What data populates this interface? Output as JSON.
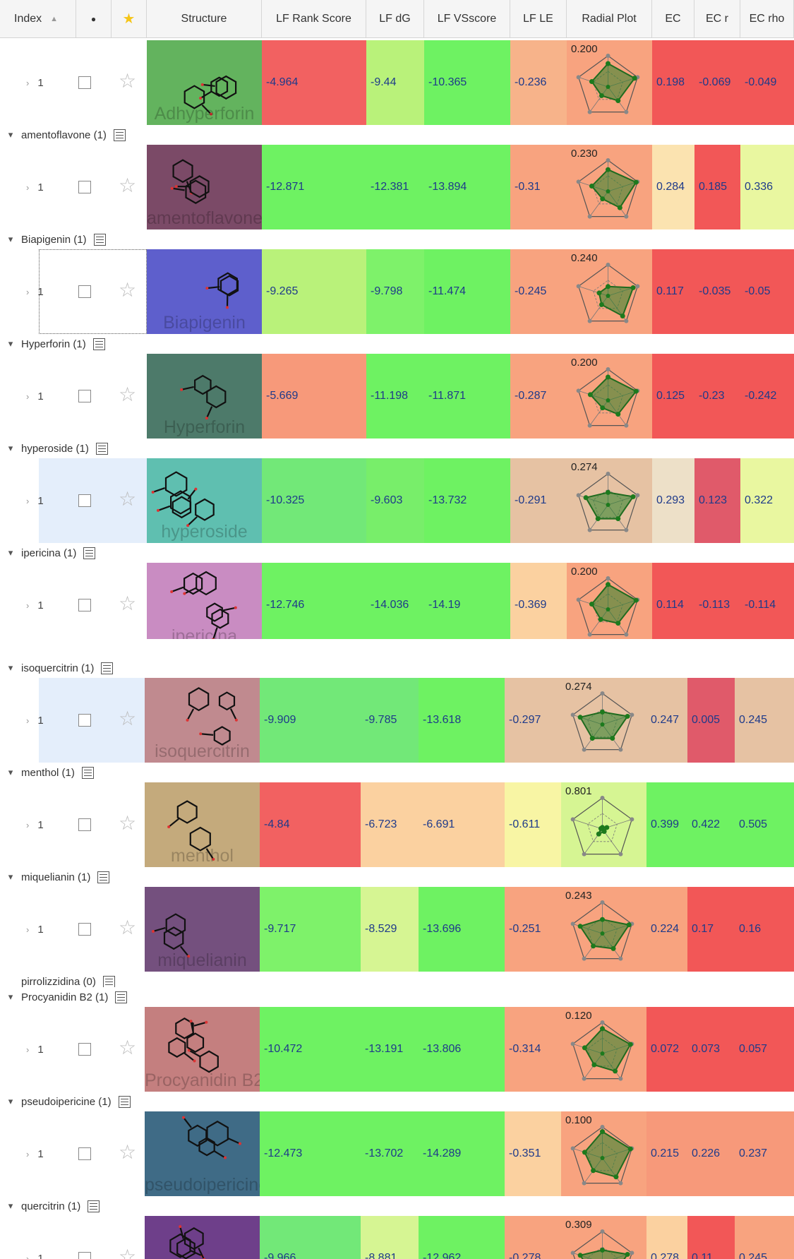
{
  "columns": {
    "index": "Index",
    "structure": "Structure",
    "rank": "LF Rank Score",
    "dg": "LF dG",
    "vs": "LF VSscore",
    "le": "LF LE",
    "radial": "Radial Plot",
    "ec": "EC",
    "ecr": "EC r",
    "ecrho": "EC rho"
  },
  "header_icons": [
    "sort-ascending-icon",
    "dot-icon",
    "star-icon"
  ],
  "panel_a": {
    "groups": [
      {
        "name": "",
        "row": {
          "index": "1",
          "structure_name": "Adhyperforin",
          "struct_color": "#63b35e",
          "rank": "-4.964",
          "rank_color": "#f26161",
          "dg": "-9.44",
          "dg_color": "#b9f27a",
          "vs": "-10.365",
          "vs_color": "#6ef262",
          "le": "-0.236",
          "le_color": "#f7b38a",
          "radial_value": "0.200",
          "radial_color": "#f8a37f",
          "radial_levels": [
            0.75,
            0.9,
            0.55,
            0.35,
            0.55
          ],
          "ec": "0.198",
          "ec_color": "#f25757",
          "ecr": "-0.069",
          "ecr_color": "#f25757",
          "ecrho": "-0.049",
          "ecrho_color": "#f25757"
        }
      },
      {
        "name": "amentoflavone (1)",
        "row": {
          "index": "1",
          "structure_name": "amentoflavone",
          "struct_color": "#7b4a67",
          "rank": "-12.871",
          "rank_color": "#6ef262",
          "dg": "-12.381",
          "dg_color": "#6ef262",
          "vs": "-13.894",
          "vs_color": "#6ef262",
          "le": "-0.31",
          "le_color": "#f8a37f",
          "radial_value": "0.230",
          "radial_color": "#f8a37f",
          "radial_levels": [
            0.7,
            0.95,
            0.65,
            0.3,
            0.55
          ],
          "ec": "0.284",
          "ec_color": "#fbe3b0",
          "ecr": "0.185",
          "ecr_color": "#f25757",
          "ecrho": "0.336",
          "ecrho_color": "#e9f7a0"
        }
      },
      {
        "name": "Biapigenin (1)",
        "row": {
          "index": "1",
          "structure_name": "Biapigenin",
          "struct_color": "#5e5fcc",
          "rank": "-9.265",
          "rank_color": "#b9f27a",
          "dg": "-9.798",
          "dg_color": "#7ef26a",
          "vs": "-11.474",
          "vs_color": "#6ef262",
          "le": "-0.245",
          "le_color": "#f8a37f",
          "radial_value": "0.240",
          "radial_color": "#f8a37f",
          "radial_levels": [
            0.3,
            0.85,
            0.8,
            0.35,
            0.3
          ],
          "ec": "0.117",
          "ec_color": "#f25757",
          "ecr": "-0.035",
          "ecr_color": "#f25757",
          "ecrho": "-0.05",
          "ecrho_color": "#f25757"
        }
      },
      {
        "name": "Hyperforin (1)",
        "row": {
          "index": "1",
          "structure_name": "Hyperforin",
          "struct_color": "#4d7a6a",
          "rank": "-5.669",
          "rank_color": "#f7997a",
          "dg": "-11.198",
          "dg_color": "#6ef262",
          "vs": "-11.871",
          "vs_color": "#6ef262",
          "le": "-0.287",
          "le_color": "#f8a37f",
          "radial_value": "0.200",
          "radial_color": "#f8a37f",
          "radial_levels": [
            0.75,
            0.95,
            0.55,
            0.3,
            0.6
          ],
          "ec": "0.125",
          "ec_color": "#f25757",
          "ecr": "-0.23",
          "ecr_color": "#f25757",
          "ecrho": "-0.242",
          "ecrho_color": "#f25757"
        }
      },
      {
        "name": "hyperoside (1)",
        "row": {
          "index": "1",
          "structure_name": "hyperoside",
          "struct_color": "#5fbfb0",
          "rank": "-10.325",
          "rank_color": "#72e878",
          "dg": "-9.603",
          "dg_color": "#78ee6a",
          "vs": "-13.732",
          "vs_color": "#6ef262",
          "le": "-0.291",
          "le_color": "#e6c2a3",
          "radial_value": "0.274",
          "radial_color": "#e6c2a3",
          "radial_levels": [
            0.4,
            0.85,
            0.55,
            0.55,
            0.75
          ],
          "ec": "0.293",
          "ec_color": "#ede0c8",
          "ecr": "0.123",
          "ecr_color": "#e05a6a",
          "ecrho": "0.322",
          "ecrho_color": "#e9f7a0"
        }
      },
      {
        "name": "ipericina (1)",
        "row": {
          "index": "1",
          "structure_name": "ipericina",
          "struct_color": "#c98cc2",
          "rank": "-12.746",
          "rank_color": "#6ef262",
          "dg": "-14.036",
          "dg_color": "#6ef262",
          "vs": "-14.19",
          "vs_color": "#6ef262",
          "le": "-0.369",
          "le_color": "#fbd1a0",
          "radial_value": "0.200",
          "radial_color": "#f8a37f",
          "radial_levels": [
            0.8,
            0.95,
            0.55,
            0.4,
            0.55
          ],
          "ec": "0.114",
          "ec_color": "#f25757",
          "ecr": "-0.113",
          "ecr_color": "#f25757",
          "ecrho": "-0.114",
          "ecrho_color": "#f25757"
        }
      }
    ]
  },
  "panel_b": {
    "groups": [
      {
        "name": "isoquercitrin (1)",
        "row": {
          "index": "1",
          "structure_name": "isoquercitrin",
          "struct_color": "#c08a8f",
          "rank": "-9.909",
          "rank_color": "#72e878",
          "dg": "-9.785",
          "dg_color": "#72e878",
          "vs": "-13.618",
          "vs_color": "#6ef262",
          "le": "-0.297",
          "le_color": "#e6c2a3",
          "radial_value": "0.274",
          "radial_color": "#e6c2a3",
          "radial_levels": [
            0.4,
            0.85,
            0.55,
            0.55,
            0.75
          ],
          "ec": "0.247",
          "ec_color": "#e6c2a3",
          "ecr": "0.005",
          "ecr_color": "#e05a6a",
          "ecrho": "0.245",
          "ecrho_color": "#e6c2a3"
        }
      },
      {
        "name": "menthol (1)",
        "row": {
          "index": "1",
          "structure_name": "menthol",
          "struct_color": "#c4aa7c",
          "rank": "-4.84",
          "rank_color": "#f26161",
          "dg": "-6.723",
          "dg_color": "#fbd1a0",
          "vs": "-6.691",
          "vs_color": "#fbd1a0",
          "le": "-0.611",
          "le_color": "#f8f5a4",
          "radial_value": "0.801",
          "radial_color": "#d6f593",
          "radial_levels": [
            0.05,
            0.15,
            0.1,
            0.2,
            0.05
          ],
          "ec": "0.399",
          "ec_color": "#6ef262",
          "ecr": "0.422",
          "ecr_color": "#6ef262",
          "ecrho": "0.505",
          "ecrho_color": "#6ef262"
        }
      },
      {
        "name": "miquelianin (1)",
        "row": {
          "index": "1",
          "structure_name": "miquelianin",
          "struct_color": "#74507e",
          "rank": "-9.717",
          "rank_color": "#7ef26a",
          "dg": "-8.529",
          "dg_color": "#d6f593",
          "vs": "-13.696",
          "vs_color": "#6ef262",
          "le": "-0.251",
          "le_color": "#f8a37f",
          "radial_value": "0.243",
          "radial_color": "#f8a37f",
          "radial_levels": [
            0.45,
            0.9,
            0.6,
            0.5,
            0.75
          ],
          "ec": "0.224",
          "ec_color": "#f8a37f",
          "ecr": "0.17",
          "ecr_color": "#f25757",
          "ecrho": "0.16",
          "ecrho_color": "#f25757"
        }
      },
      {
        "name": "pirrolizzidina (0)",
        "expandable": false
      },
      {
        "name": "Procyanidin B2 (1)",
        "row": {
          "index": "1",
          "structure_name": "Procyanidin B2",
          "struct_color": "#c47f7f",
          "rank": "-10.472",
          "rank_color": "#6ef262",
          "dg": "-13.191",
          "dg_color": "#6ef262",
          "vs": "-13.806",
          "vs_color": "#6ef262",
          "le": "-0.314",
          "le_color": "#f8a37f",
          "radial_value": "0.120",
          "radial_color": "#f8a37f",
          "radial_levels": [
            0.8,
            0.95,
            0.7,
            0.45,
            0.6
          ],
          "ec": "0.072",
          "ec_color": "#f25757",
          "ecr": "0.073",
          "ecr_color": "#f25757",
          "ecrho": "0.057",
          "ecrho_color": "#f25757"
        }
      },
      {
        "name": "pseudoipericine (1)",
        "row": {
          "index": "1",
          "structure_name": "pseudoipericine",
          "struct_color": "#3f6b86",
          "rank": "-12.473",
          "rank_color": "#6ef262",
          "dg": "-13.702",
          "dg_color": "#6ef262",
          "vs": "-14.289",
          "vs_color": "#6ef262",
          "le": "-0.351",
          "le_color": "#fbd1a0",
          "radial_value": "0.100",
          "radial_color": "#f8a37f",
          "radial_levels": [
            0.85,
            0.95,
            0.75,
            0.5,
            0.6
          ],
          "ec": "0.215",
          "ec_color": "#f7997a",
          "ecr": "0.226",
          "ecr_color": "#f7997a",
          "ecrho": "0.237",
          "ecrho_color": "#f7997a"
        }
      },
      {
        "name": "quercitrin (1)",
        "row": {
          "index": "1",
          "structure_name": "",
          "struct_color": "#6e3f8a",
          "rank": "-9.966",
          "rank_color": "#72e878",
          "dg": "-8.881",
          "dg_color": "#d6f593",
          "vs": "-12.962",
          "vs_color": "#6ef262",
          "le": "-0.278",
          "le_color": "#f8a37f",
          "radial_value": "0.309",
          "radial_color": "#f8a37f",
          "radial_levels": [
            0.4,
            0.85,
            0.55,
            0.5,
            0.75
          ],
          "ec": "0.278",
          "ec_color": "#fbd1a0",
          "ecr": "0.11",
          "ecr_color": "#f25757",
          "ecrho": "0.245",
          "ecrho_color": "#f8a37f"
        }
      }
    ]
  }
}
